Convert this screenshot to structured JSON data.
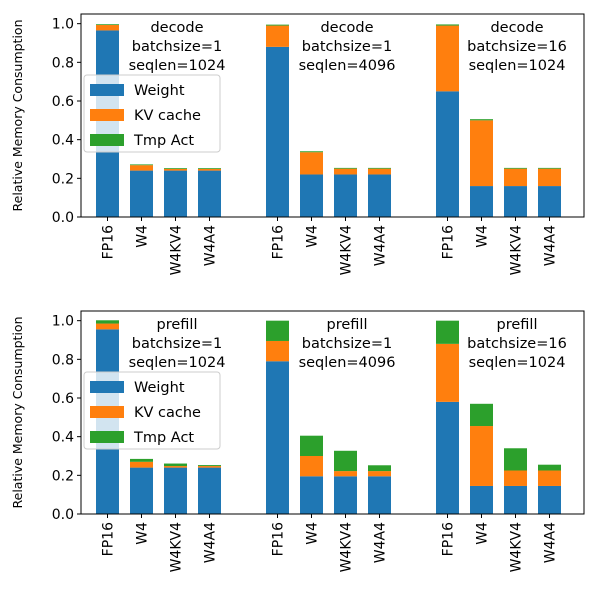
{
  "colors": {
    "weight": "#1f77b4",
    "kv_cache": "#ff7f0e",
    "tmp_act": "#2ca02c"
  },
  "chart_data": [
    {
      "type": "bar",
      "stacked": true,
      "ylabel": "Relative Memory Consumption",
      "ylim": [
        0,
        1.05
      ],
      "yticks": [
        "0.0",
        "0.2",
        "0.4",
        "0.6",
        "0.8",
        "1.0"
      ],
      "legend": {
        "placement": "center-left",
        "entries": [
          "Weight",
          "KV cache",
          "Tmp Act"
        ]
      },
      "groups": [
        {
          "annotation": [
            "decode",
            "batchsize=1",
            "seqlen=1024"
          ],
          "categories": [
            "FP16",
            "W4",
            "W4KV4",
            "W4A4"
          ],
          "series": [
            {
              "name": "Weight",
              "values": [
                0.965,
                0.24,
                0.24,
                0.24
              ]
            },
            {
              "name": "KV cache",
              "values": [
                0.028,
                0.028,
                0.009,
                0.009
              ]
            },
            {
              "name": "Tmp Act",
              "values": [
                0.004,
                0.004,
                0.004,
                0.004
              ]
            }
          ]
        },
        {
          "annotation": [
            "decode",
            "batchsize=1",
            "seqlen=4096"
          ],
          "categories": [
            "FP16",
            "W4",
            "W4KV4",
            "W4A4"
          ],
          "series": [
            {
              "name": "Weight",
              "values": [
                0.88,
                0.22,
                0.22,
                0.22
              ]
            },
            {
              "name": "KV cache",
              "values": [
                0.11,
                0.115,
                0.03,
                0.03
              ]
            },
            {
              "name": "Tmp Act",
              "values": [
                0.005,
                0.005,
                0.004,
                0.004
              ]
            }
          ]
        },
        {
          "annotation": [
            "decode",
            "batchsize=16",
            "seqlen=1024"
          ],
          "categories": [
            "FP16",
            "W4",
            "W4KV4",
            "W4A4"
          ],
          "series": [
            {
              "name": "Weight",
              "values": [
                0.65,
                0.16,
                0.16,
                0.16
              ]
            },
            {
              "name": "KV cache",
              "values": [
                0.34,
                0.34,
                0.09,
                0.09
              ]
            },
            {
              "name": "Tmp Act",
              "values": [
                0.006,
                0.006,
                0.004,
                0.004
              ]
            }
          ]
        }
      ]
    },
    {
      "type": "bar",
      "stacked": true,
      "ylabel": "Relative Memory Consumption",
      "ylim": [
        0,
        1.05
      ],
      "yticks": [
        "0.0",
        "0.2",
        "0.4",
        "0.6",
        "0.8",
        "1.0"
      ],
      "legend": {
        "placement": "center-left",
        "entries": [
          "Weight",
          "KV cache",
          "Tmp Act"
        ]
      },
      "groups": [
        {
          "annotation": [
            "prefill",
            "batchsize=1",
            "seqlen=1024"
          ],
          "categories": [
            "FP16",
            "W4",
            "W4KV4",
            "W4A4"
          ],
          "series": [
            {
              "name": "Weight",
              "values": [
                0.955,
                0.24,
                0.24,
                0.24
              ]
            },
            {
              "name": "KV cache",
              "values": [
                0.03,
                0.03,
                0.008,
                0.008
              ]
            },
            {
              "name": "Tmp Act",
              "values": [
                0.017,
                0.015,
                0.013,
                0.005
              ]
            }
          ]
        },
        {
          "annotation": [
            "prefill",
            "batchsize=1",
            "seqlen=4096"
          ],
          "categories": [
            "FP16",
            "W4",
            "W4KV4",
            "W4A4"
          ],
          "series": [
            {
              "name": "Weight",
              "values": [
                0.79,
                0.195,
                0.195,
                0.195
              ]
            },
            {
              "name": "KV cache",
              "values": [
                0.105,
                0.105,
                0.027,
                0.027
              ]
            },
            {
              "name": "Tmp Act",
              "values": [
                0.105,
                0.105,
                0.105,
                0.03
              ]
            }
          ]
        },
        {
          "annotation": [
            "prefill",
            "batchsize=16",
            "seqlen=1024"
          ],
          "categories": [
            "FP16",
            "W4",
            "W4KV4",
            "W4A4"
          ],
          "series": [
            {
              "name": "Weight",
              "values": [
                0.58,
                0.145,
                0.145,
                0.145
              ]
            },
            {
              "name": "KV cache",
              "values": [
                0.3,
                0.31,
                0.08,
                0.08
              ]
            },
            {
              "name": "Tmp Act",
              "values": [
                0.12,
                0.115,
                0.115,
                0.03
              ]
            }
          ]
        }
      ]
    }
  ]
}
